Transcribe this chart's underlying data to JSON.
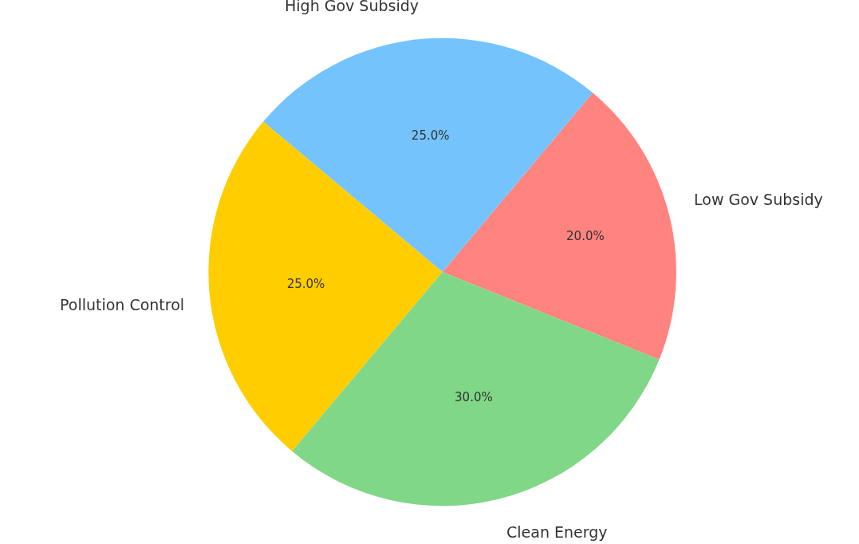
{
  "chart_data": {
    "type": "pie",
    "categories": [
      "Low Gov Subsidy",
      "High Gov Subsidy",
      "Pollution Control",
      "Clean Energy"
    ],
    "values": [
      20,
      25,
      25,
      30
    ],
    "value_labels": [
      "20.0%",
      "25.0%",
      "25.0%",
      "30.0%"
    ],
    "colors": [
      "#ff837f",
      "#74c3fd",
      "#ffcd00",
      "#7fd787"
    ],
    "legend": false
  }
}
